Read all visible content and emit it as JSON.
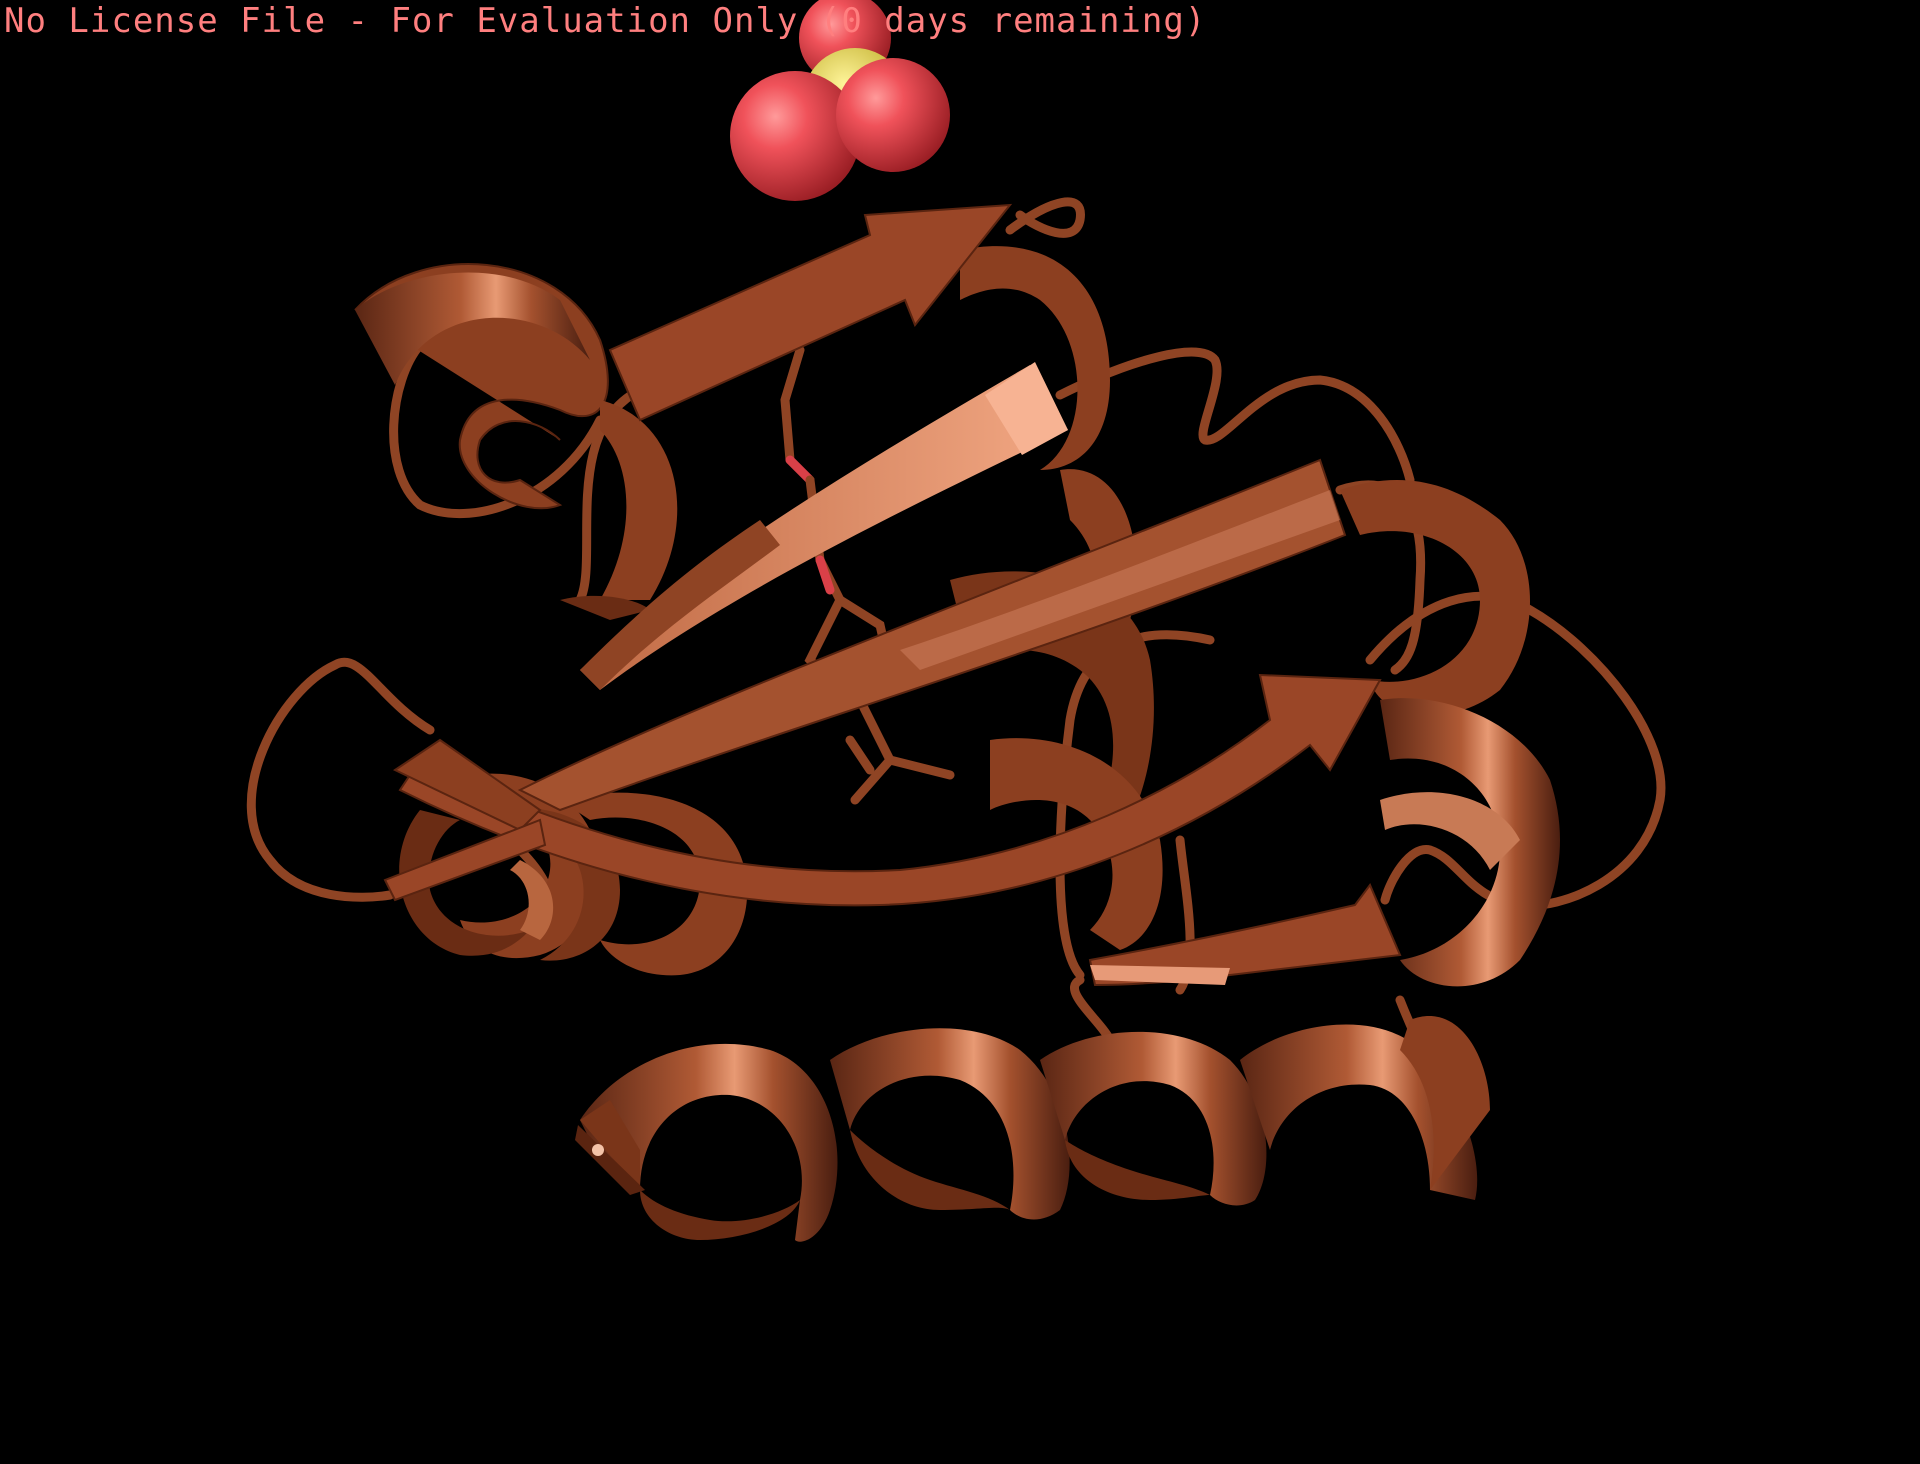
{
  "banner": {
    "text": "No License File - For Evaluation Only (0 days remaining)",
    "color": "#ff7f7f"
  },
  "viewer": {
    "background": "#000000",
    "molecule_color": "#9b4a2a",
    "ligand_oxygen_color": "#e8474f",
    "ligand_sulfur_color": "#d8c93c"
  }
}
